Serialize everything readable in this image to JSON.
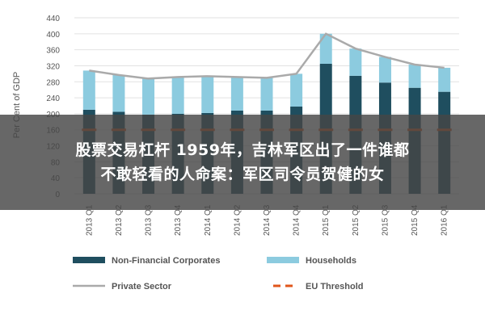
{
  "chart_data": {
    "type": "bar",
    "stacked": true,
    "ylabel": "Per Cent of GDP",
    "ylim": [
      0,
      440
    ],
    "yticks": [
      0,
      40,
      80,
      120,
      160,
      200,
      240,
      280,
      320,
      360,
      400,
      440
    ],
    "grid": true,
    "legend_position": "bottom",
    "categories": [
      "2013 Q1",
      "2013 Q2",
      "2013 Q3",
      "2013 Q4",
      "2014 Q1",
      "2014 Q2",
      "2014 Q3",
      "2014 Q4",
      "2015 Q1",
      "2015 Q2",
      "2015 Q3",
      "2015 Q4",
      "2016 Q1"
    ],
    "series": [
      {
        "name": "Non-Financial Corporates",
        "type": "bar",
        "color": "#1f4e5f",
        "values": [
          210,
          205,
          198,
          200,
          202,
          208,
          208,
          218,
          325,
          295,
          278,
          265,
          255
        ]
      },
      {
        "name": "Households",
        "type": "bar",
        "color": "#8ccbdf",
        "values": [
          98,
          92,
          90,
          92,
          92,
          84,
          82,
          82,
          75,
          68,
          64,
          58,
          60
        ]
      },
      {
        "name": "Private Sector",
        "type": "line",
        "color": "#aaaaaa",
        "values": [
          308,
          297,
          288,
          292,
          294,
          292,
          290,
          300,
          400,
          363,
          342,
          323,
          315
        ]
      },
      {
        "name": "EU Threshold",
        "type": "dashed",
        "color": "#e0561b",
        "values": [
          160,
          160,
          160,
          160,
          160,
          160,
          160,
          160,
          160,
          160,
          160,
          160,
          160
        ]
      }
    ]
  },
  "overlay": {
    "line1": "股票交易杠杆 1959年，吉林军区出了一件谁都",
    "line2": "不敢轻看的人命案：军区司令员贺健的女"
  }
}
